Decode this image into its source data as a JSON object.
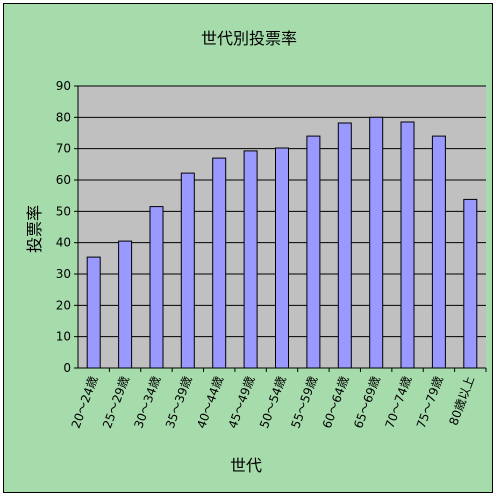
{
  "chart_data": {
    "type": "bar",
    "title": "世代別投票率",
    "xlabel": "世代",
    "ylabel": "投票率",
    "ylim": [
      0,
      90
    ],
    "yticks": [
      0,
      10,
      20,
      30,
      40,
      50,
      60,
      70,
      80,
      90
    ],
    "grid": true,
    "categories": [
      "20～24歳",
      "25～29歳",
      "30～34歳",
      "35～39歳",
      "40～44歳",
      "45～49歳",
      "50～54歳",
      "55～59歳",
      "60～64歳",
      "65～69歳",
      "70～74歳",
      "75～79歳",
      "80歳以上"
    ],
    "values": [
      35.4,
      40.5,
      51.5,
      62.2,
      67.0,
      69.3,
      70.2,
      74.0,
      78.2,
      80.0,
      78.5,
      74.0,
      53.8
    ],
    "colors": {
      "background": "#a6dcac",
      "plot_area": "#c0c0c0",
      "bar_fill": "#9999ff",
      "bar_stroke": "#000000",
      "grid": "#000000"
    }
  }
}
